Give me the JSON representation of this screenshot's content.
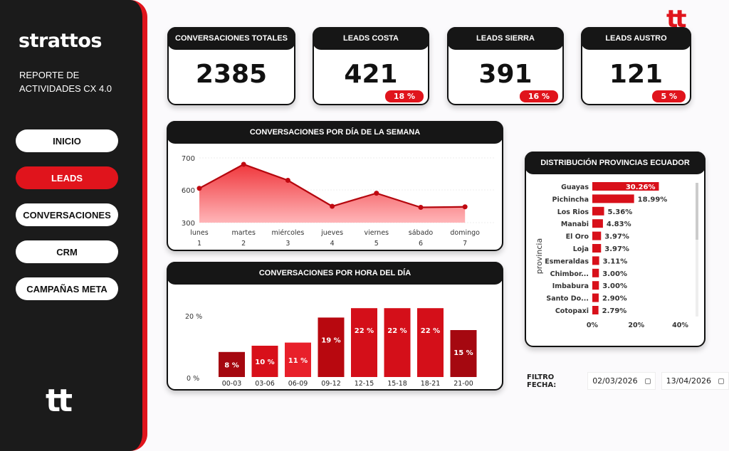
{
  "sidebar": {
    "logo": "strattos",
    "subtitle_1": "REPORTE DE",
    "subtitle_2": "ACTIVIDADES CX 4.0",
    "nav": [
      "INICIO",
      "LEADS",
      "CONVERSACIONES",
      "CRM",
      "CAMPAÑAS META"
    ],
    "active": "LEADS",
    "bottom_logo": "tt"
  },
  "brand_logo": "tt",
  "kpis": [
    {
      "title": "CONVERSACIONES TOTALES",
      "value": "2385"
    },
    {
      "title": "LEADS COSTA",
      "value": "421",
      "pct": "18 %"
    },
    {
      "title": "LEADS SIERRA",
      "value": "391",
      "pct": "16 %"
    },
    {
      "title": "LEADS AUSTRO",
      "value": "121",
      "pct": "5 %"
    }
  ],
  "filter": {
    "label": "FILTRO FECHA:",
    "from": "02/03/2026",
    "to": "13/04/2026"
  },
  "colors": {
    "accent": "#e0141c",
    "dark": "#161616"
  },
  "chart_data": [
    {
      "type": "area",
      "title": "CONVERSACIONES POR DÍA DE LA SEMANA",
      "categories": [
        "lunes",
        "martes",
        "miércoles",
        "jueves",
        "viernes",
        "sábado",
        "domingo"
      ],
      "subcategories": [
        "1",
        "2",
        "3",
        "4",
        "5",
        "6",
        "7"
      ],
      "values": [
        605,
        680,
        630,
        450,
        570,
        440,
        445
      ],
      "yticks": [
        "700",
        "600",
        "300"
      ]
    },
    {
      "type": "bar",
      "title": "CONVERSACIONES POR HORA DEL DÍA",
      "categories": [
        "00-03",
        "03-06",
        "06-09",
        "09-12",
        "12-15",
        "15-18",
        "18-21",
        "21-00"
      ],
      "values": [
        8,
        10,
        11,
        19,
        22,
        22,
        22,
        15
      ],
      "labels": [
        "8 %",
        "10 %",
        "11 %",
        "19 %",
        "22 %",
        "22 %",
        "22 %",
        "15 %"
      ],
      "yticks": [
        "20 %",
        "0 %"
      ]
    },
    {
      "type": "bar",
      "orientation": "horizontal",
      "title": "DISTRIBUCIÓN PROVINCIAS ECUADOR",
      "ylabel": "provincia",
      "categories": [
        "Guayas",
        "Pichincha",
        "Los Rios",
        "Manabi",
        "El Oro",
        "Loja",
        "Esmeraldas",
        "Chimbor...",
        "Imbabura",
        "Santo Do...",
        "Cotopaxi"
      ],
      "values": [
        30.26,
        18.99,
        5.36,
        4.83,
        3.97,
        3.97,
        3.11,
        3.0,
        3.0,
        2.9,
        2.79
      ],
      "labels": [
        "30.26%",
        "18.99%",
        "5.36%",
        "4.83%",
        "3.97%",
        "3.97%",
        "3.11%",
        "3.00%",
        "3.00%",
        "2.90%",
        "2.79%"
      ],
      "xticks": [
        "0%",
        "20%",
        "40%"
      ]
    }
  ]
}
